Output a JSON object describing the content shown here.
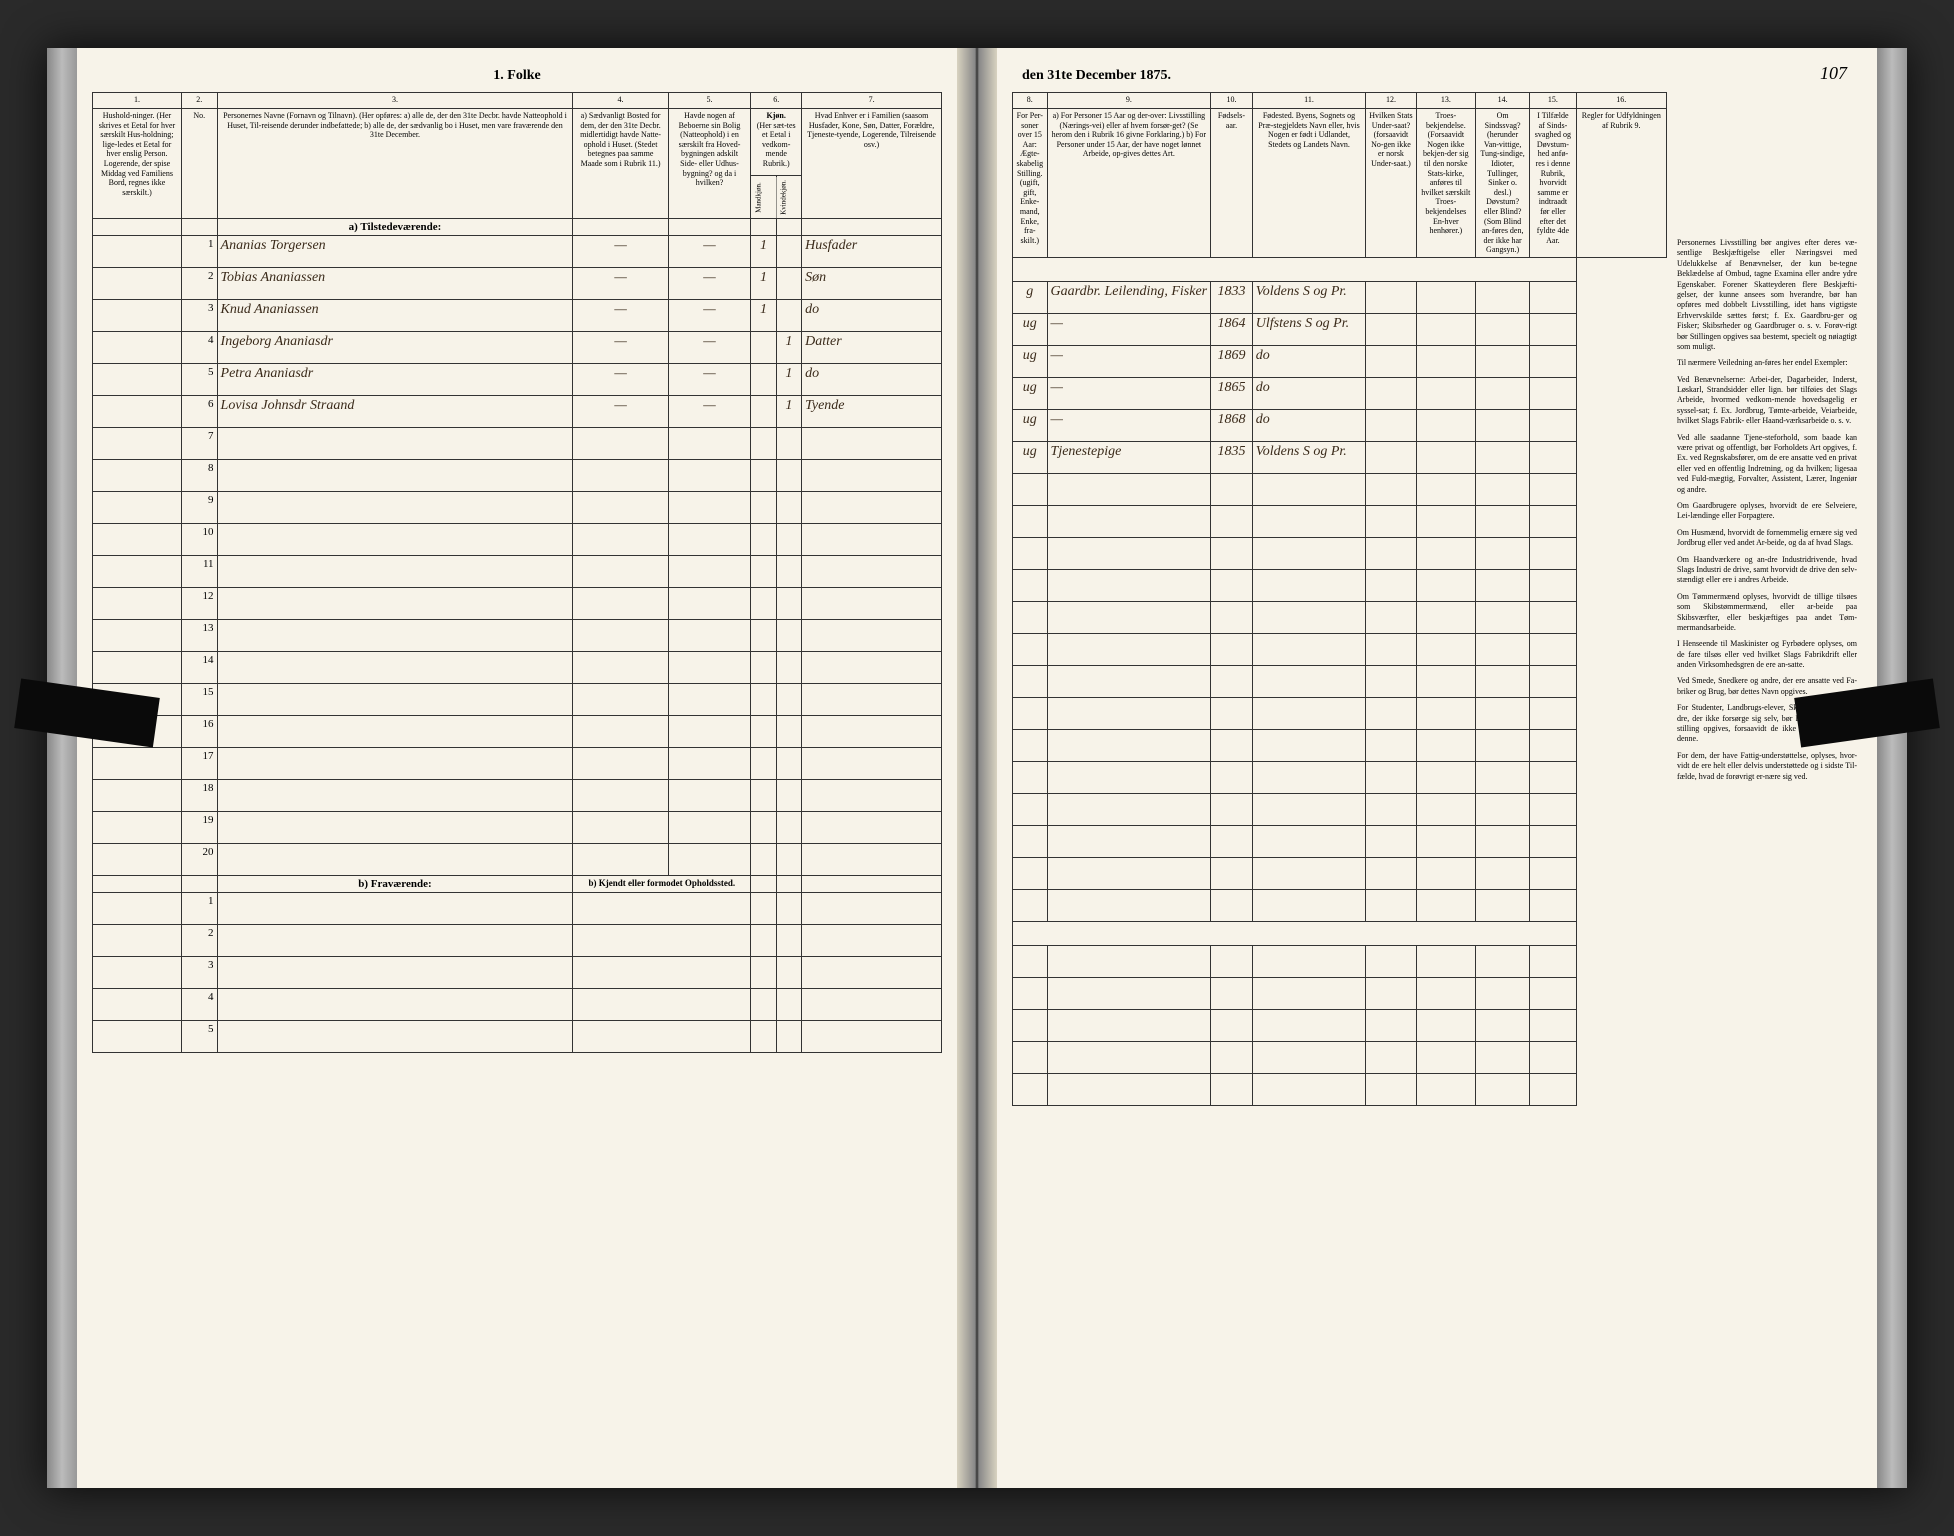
{
  "title_left": "1. Folke",
  "title_right": "den 31te December 1875.",
  "page_number": "107",
  "left_colnums": [
    "1.",
    "2.",
    "3.",
    "4.",
    "5.",
    "6.",
    "7."
  ],
  "left_heads": {
    "c1": "Hushold-ninger. (Her skrives et Eetal for hver særskilt Hus-holdning; lige-ledes et Eetal for hver enslig Person. Logerende, der spise Middag ved Familiens Bord, regnes ikke særskilt.)",
    "c2": "No.",
    "c3": "Personernes Navne (Fornavn og Tilnavn). (Her opføres: a) alle de, der den 31te Decbr. havde Natteophold i Huset, Til-reisende derunder indbefattede; b) alle de, der sædvanlig bo i Huset, men vare fraværende den 31te December.",
    "c4": "a) Sædvanligt Bosted for dem, der den 31te Decbr. midlertidigt havde Natte-ophold i Huset. (Stedet betegnes paa samme Maade som i Rubrik 11.)",
    "c5": "Havde nogen af Beboerne sin Bolig (Natteophold) i en særskilt fra Hoved-bygningen adskilt Side- eller Udhus-bygning? og da i hvilken?",
    "c6a": "Kjøn.",
    "c6b": "(Her sæt-tes et Eetal i vedkom-mende Rubrik.)",
    "c6m": "Mandkjøn.",
    "c6k": "Kvindekjøn.",
    "c7": "Hvad Enhver er i Familien (saasom Husfader, Kone, Søn, Datter, Forældre, Tjeneste-tyende, Logerende, Tilreisende osv.)"
  },
  "right_colnums": [
    "8.",
    "9.",
    "10.",
    "11.",
    "12.",
    "13.",
    "14.",
    "15.",
    "16."
  ],
  "right_heads": {
    "c8": "For Per-soner over 15 Aar: Ægte-skabelig Stilling. (ugift, gift, Enke-mand, Enke, fra-skilt.)",
    "c9": "a) For Personer 15 Aar og der-over: Livsstilling (Nærings-vei) eller af hvem forsør-get? (Se herom den i Rubrik 16 givne Forklaring.) b) For Personer under 15 Aar, der have noget lønnet Arbeide, op-gives dettes Art.",
    "c10": "Fødsels-aar.",
    "c11": "Fødested. Byens, Sognets og Præ-stegjeldets Navn eller, hvis Nogen er født i Udlandet, Stedets og Landets Navn.",
    "c12": "Hvilken Stats Under-saat? (forsaavidt No-gen ikke er norsk Under-saat.)",
    "c13": "Troes-bekjendelse. (Forsaavidt Nogen ikke bekjen-der sig til den norske Stats-kirke, anføres til hvilket særskilt Troes-bekjendelses En-hver henhører.)",
    "c14": "Om Sindssvag? (herunder Van-vittige, Tung-sindige, Idioter, Tullinger, Sinker o. desl.) Døvstum? eller Blind? (Som Blind an-føres den, der ikke har Gangsyn.)",
    "c15": "I Tilfælde af Sinds-svaghed og Døvstum-hed anfø-res i denne Rubrik, hvorvidt samme er indtraadt før eller efter det fyldte 4de Aar.",
    "c16": "Regler for Udfyldningen af Rubrik 9."
  },
  "section_a": "a) Tilstedeværende:",
  "section_b": "b) Fraværende:",
  "section_b_right": "b) Kjendt eller formodet Opholdssted.",
  "rows": [
    {
      "n": "1",
      "name": "Ananias Torgersen",
      "c4": "—",
      "c5": "—",
      "m": "1",
      "k": "",
      "fam": "Husfader",
      "c8": "g",
      "liv": "Gaardbr. Leilending, Fisker",
      "aar": "1833",
      "fsted": "Voldens S og Pr."
    },
    {
      "n": "2",
      "name": "Tobias Ananiassen",
      "c4": "—",
      "c5": "—",
      "m": "1",
      "k": "",
      "fam": "Søn",
      "c8": "ug",
      "liv": "—",
      "aar": "1864",
      "fsted": "Ulfstens S og Pr."
    },
    {
      "n": "3",
      "name": "Knud Ananiassen",
      "c4": "—",
      "c5": "—",
      "m": "1",
      "k": "",
      "fam": "do",
      "c8": "ug",
      "liv": "—",
      "aar": "1869",
      "fsted": "do"
    },
    {
      "n": "4",
      "name": "Ingeborg Ananiasdr",
      "c4": "—",
      "c5": "—",
      "m": "",
      "k": "1",
      "fam": "Datter",
      "c8": "ug",
      "liv": "—",
      "aar": "1865",
      "fsted": "do"
    },
    {
      "n": "5",
      "name": "Petra Ananiasdr",
      "c4": "—",
      "c5": "—",
      "m": "",
      "k": "1",
      "fam": "do",
      "c8": "ug",
      "liv": "—",
      "aar": "1868",
      "fsted": "do"
    },
    {
      "n": "6",
      "name": "Lovisa Johnsdr Straand",
      "c4": "—",
      "c5": "—",
      "m": "",
      "k": "1",
      "fam": "Tyende",
      "c8": "ug",
      "liv": "Tjenestepige",
      "aar": "1835",
      "fsted": "Voldens S og Pr."
    }
  ],
  "empty_a": [
    "7",
    "8",
    "9",
    "10",
    "11",
    "12",
    "13",
    "14",
    "15",
    "16",
    "17",
    "18",
    "19",
    "20"
  ],
  "empty_b": [
    "1",
    "2",
    "3",
    "4",
    "5"
  ],
  "instructions": {
    "title": "",
    "p1": "Personernes Livsstilling bør angives efter deres væ-sentlige Beskjæftigelse eller Næringsvei med Udelukkelse af Benævnelser, der kun be-tegne Beklædelse af Ombud, tagne Examina eller andre ydre Egenskaber. Forener Skatteyderen flere Beskjæfti-gelser, der kunne ansees som hverandre, bør han opføres med dobbelt Livsstilling, idet hans vigtigste Erhvervskilde sættes først; f. Ex. Gaardbru-ger og Fisker; Skibsrheder og Gaardbruger o. s. v. Forøv-rigt bør Stillingen opgives saa bestemt, specielt og nøiagtigt som muligt.",
    "p2": "Til nærmere Veiledning an-føres her endel Exempler:",
    "p3": "Ved Benævnelserne: Arbei-der, Dagarbeider, Inderst, Løskarl, Strandsidder eller lign. bør tilføies det Slags Arbeide, hvormed vedkom-mende hovedsagelig er syssel-sat; f. Ex. Jordbrug, Tømte-arbeide, Veiarbeide, hvilket Slags Fabrik- eller Haand-værksarbeide o. s. v.",
    "p4": "Ved alle saadanne Tjene-steforhold, som baade kan være privat og offentligt, bør Forholdets Art opgives, f. Ex. ved Regnskabsfører, om de ere ansatte ved en privat eller ved en offentlig Indretning, og da hvilken; ligesaa ved Fuld-mægtig, Forvalter, Assistent, Lærer, Ingeniør og andre.",
    "p5": "Om Gaardbrugere oplyses, hvorvidt de ere Selveiere, Lei-lændinge eller Forpagtere.",
    "p6": "Om Husmænd, hvorvidt de fornemmelig ernære sig ved Jordbrug eller ved andet Ar-beide, og da af hvad Slags.",
    "p7": "Om Haandværkere og an-dre Industridrivende, hvad Slags Industri de drive, samt hvorvidt de drive den selv-stændigt eller ere i andres Arbeide.",
    "p8": "Om Tømmermænd oplyses, hvorvidt de tillige tilsøes som Skibstømmermænd, eller ar-beide paa Skibsværfter, eller beskjæftiges paa andet Tøm-mermandsarbeide.",
    "p9": "I Henseende til Maskinister og Fyrbødere oplyses, om de fare tilsøs eller ved hvilket Slags Fabrikdrift eller anden Virksomhedsgren de ere an-satte.",
    "p10": "Ved Smede, Snedkere og andre, der ere ansatte ved Fa-briker og Brug, bør dettes Navn opgives.",
    "p11": "For Studenter, Landbrugs-elever, Skoledisciple og an-dre, der ikke forsørge sig selv, bør Forsørgerens Livs-stilling opgives, forsaavidt de ikke bo sammen med denne.",
    "p12": "For dem, der have Fattig-understøttelse, oplyses, hvor-vidt de ere helt eller delvis understøttede og i sidste Til-fælde, hvad de forøvrigt er-nære sig ved."
  },
  "colors": {
    "paper": "#f7f3e9",
    "ink": "#333",
    "handwriting": "#3a2a1a",
    "border": "#333"
  }
}
